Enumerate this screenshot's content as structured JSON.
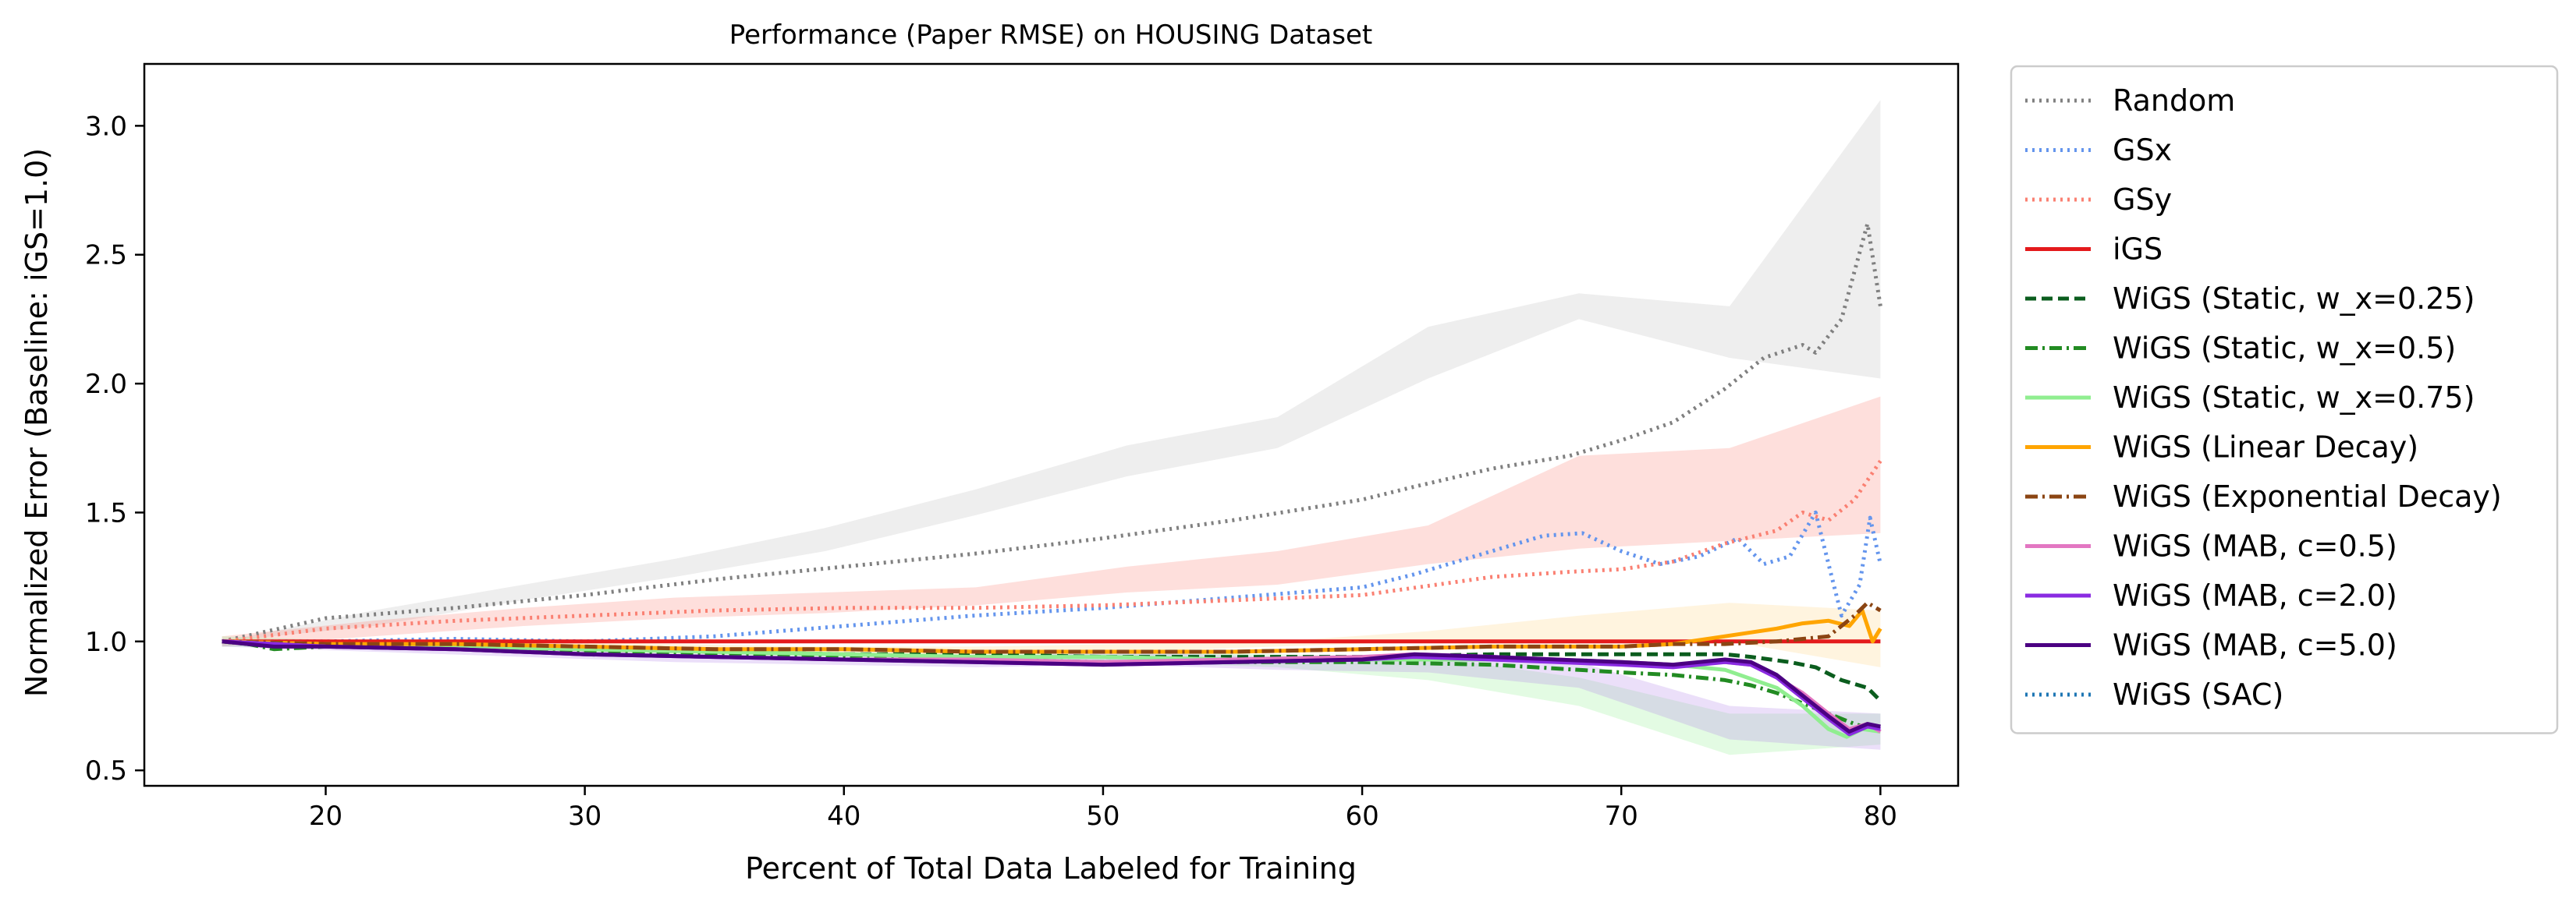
{
  "chart_data": {
    "type": "line",
    "title": "Performance (Paper RMSE) on HOUSING Dataset",
    "xlabel": "Percent of Total Data Labeled for Training",
    "ylabel": "Normalized Error (Baseline: iGS=1.0)",
    "xlim": [
      13,
      83
    ],
    "ylim": [
      0.44,
      3.24
    ],
    "xticks": [
      20,
      30,
      40,
      50,
      60,
      70,
      80
    ],
    "yticks": [
      0.5,
      1.0,
      1.5,
      2.0,
      2.5,
      3.0
    ],
    "xtick_labels": [
      "20",
      "30",
      "40",
      "50",
      "60",
      "70",
      "80"
    ],
    "ytick_labels": [
      "0.5",
      "1.0",
      "1.5",
      "2.0",
      "2.5",
      "3.0"
    ],
    "grid": false,
    "legend_position": "outside-right",
    "series": [
      {
        "name": "Random",
        "color": "#808080",
        "style": "dotted",
        "band": {
          "color": "#bdbdbd",
          "lower": [
            1.0,
            1.06,
            1.16,
            1.25,
            1.35,
            1.49,
            1.64,
            1.75,
            2.02,
            2.25,
            2.1,
            2.02
          ],
          "upper": [
            1.0,
            1.12,
            1.22,
            1.32,
            1.44,
            1.59,
            1.76,
            1.87,
            2.22,
            2.35,
            2.3,
            3.1
          ]
        },
        "points": [
          [
            16,
            1.0
          ],
          [
            20,
            1.09
          ],
          [
            25,
            1.13
          ],
          [
            30,
            1.18
          ],
          [
            35,
            1.24
          ],
          [
            40,
            1.29
          ],
          [
            45,
            1.34
          ],
          [
            50,
            1.4
          ],
          [
            55,
            1.47
          ],
          [
            60,
            1.55
          ],
          [
            62,
            1.6
          ],
          [
            65,
            1.67
          ],
          [
            68,
            1.72
          ],
          [
            70,
            1.78
          ],
          [
            72,
            1.85
          ],
          [
            74,
            1.98
          ],
          [
            75.5,
            2.1
          ],
          [
            77,
            2.15
          ],
          [
            77.5,
            2.12
          ],
          [
            78.5,
            2.25
          ],
          [
            79.5,
            2.62
          ],
          [
            80,
            2.3
          ]
        ]
      },
      {
        "name": "GSx",
        "color": "#6495ed",
        "style": "dotted",
        "points": [
          [
            16,
            1.0
          ],
          [
            20,
            1.0
          ],
          [
            25,
            1.01
          ],
          [
            30,
            1.0
          ],
          [
            35,
            1.02
          ],
          [
            40,
            1.06
          ],
          [
            45,
            1.1
          ],
          [
            50,
            1.13
          ],
          [
            55,
            1.17
          ],
          [
            60,
            1.21
          ],
          [
            62,
            1.26
          ],
          [
            65,
            1.35
          ],
          [
            67,
            1.41
          ],
          [
            68.5,
            1.42
          ],
          [
            70,
            1.35
          ],
          [
            71.5,
            1.3
          ],
          [
            73,
            1.33
          ],
          [
            74.5,
            1.4
          ],
          [
            75.5,
            1.3
          ],
          [
            76.5,
            1.33
          ],
          [
            77.5,
            1.5
          ],
          [
            78.5,
            1.1
          ],
          [
            79.2,
            1.22
          ],
          [
            79.6,
            1.48
          ],
          [
            80,
            1.3
          ]
        ]
      },
      {
        "name": "GSy",
        "color": "#fa8072",
        "style": "dotted",
        "band": {
          "color": "#fa8072",
          "lower": [
            0.98,
            1.02,
            1.06,
            1.09,
            1.11,
            1.14,
            1.19,
            1.22,
            1.3,
            1.36,
            1.39,
            1.42
          ],
          "upper": [
            1.02,
            1.08,
            1.13,
            1.17,
            1.19,
            1.21,
            1.29,
            1.35,
            1.45,
            1.72,
            1.75,
            1.95
          ]
        },
        "points": [
          [
            16,
            1.0
          ],
          [
            20,
            1.05
          ],
          [
            25,
            1.08
          ],
          [
            30,
            1.1
          ],
          [
            35,
            1.12
          ],
          [
            40,
            1.13
          ],
          [
            45,
            1.13
          ],
          [
            50,
            1.14
          ],
          [
            55,
            1.16
          ],
          [
            60,
            1.18
          ],
          [
            65,
            1.25
          ],
          [
            68,
            1.27
          ],
          [
            70,
            1.28
          ],
          [
            72,
            1.31
          ],
          [
            74,
            1.38
          ],
          [
            76,
            1.43
          ],
          [
            77,
            1.5
          ],
          [
            78,
            1.47
          ],
          [
            79,
            1.55
          ],
          [
            80,
            1.7
          ]
        ]
      },
      {
        "name": "iGS",
        "color": "#e41a1c",
        "style": "solid",
        "points": [
          [
            16,
            1.0
          ],
          [
            80,
            1.0
          ]
        ]
      },
      {
        "name": "WiGS (Static, w_x=0.25)",
        "color": "#0b5d1e",
        "style": "dashed",
        "points": [
          [
            16,
            1.0
          ],
          [
            17,
            0.99
          ],
          [
            18,
            0.98
          ],
          [
            20,
            0.99
          ],
          [
            25,
            0.98
          ],
          [
            30,
            0.97
          ],
          [
            35,
            0.96
          ],
          [
            40,
            0.95
          ],
          [
            45,
            0.95
          ],
          [
            50,
            0.94
          ],
          [
            55,
            0.94
          ],
          [
            60,
            0.94
          ],
          [
            65,
            0.95
          ],
          [
            70,
            0.95
          ],
          [
            72,
            0.95
          ],
          [
            74,
            0.95
          ],
          [
            75,
            0.94
          ],
          [
            76.5,
            0.92
          ],
          [
            77.5,
            0.9
          ],
          [
            78.5,
            0.85
          ],
          [
            79.5,
            0.82
          ],
          [
            80,
            0.77
          ]
        ]
      },
      {
        "name": "WiGS (Static, w_x=0.5)",
        "color": "#228b22",
        "style": "dashdot",
        "points": [
          [
            16,
            1.0
          ],
          [
            17,
            0.99
          ],
          [
            18,
            0.97
          ],
          [
            20,
            0.98
          ],
          [
            25,
            0.97
          ],
          [
            30,
            0.96
          ],
          [
            35,
            0.95
          ],
          [
            40,
            0.94
          ],
          [
            45,
            0.93
          ],
          [
            50,
            0.92
          ],
          [
            55,
            0.92
          ],
          [
            60,
            0.92
          ],
          [
            65,
            0.91
          ],
          [
            70,
            0.88
          ],
          [
            72,
            0.87
          ],
          [
            74,
            0.85
          ],
          [
            75,
            0.83
          ],
          [
            76,
            0.8
          ],
          [
            77,
            0.76
          ],
          [
            78,
            0.72
          ],
          [
            79,
            0.68
          ],
          [
            80,
            0.65
          ]
        ]
      },
      {
        "name": "WiGS (Static, w_x=0.75)",
        "color": "#90ee90",
        "style": "solid",
        "band": {
          "color": "#90ee90",
          "lower": [
            0.98,
            0.97,
            0.96,
            0.95,
            0.94,
            0.93,
            0.92,
            0.9,
            0.85,
            0.75,
            0.56,
            0.6
          ],
          "upper": [
            1.02,
            1.0,
            0.99,
            0.97,
            0.96,
            0.95,
            0.96,
            0.95,
            0.94,
            0.86,
            0.72,
            0.72
          ]
        },
        "points": [
          [
            16,
            1.0
          ],
          [
            20,
            0.99
          ],
          [
            25,
            0.98
          ],
          [
            30,
            0.97
          ],
          [
            35,
            0.96
          ],
          [
            40,
            0.95
          ],
          [
            45,
            0.94
          ],
          [
            50,
            0.94
          ],
          [
            55,
            0.93
          ],
          [
            60,
            0.93
          ],
          [
            65,
            0.93
          ],
          [
            70,
            0.92
          ],
          [
            72,
            0.91
          ],
          [
            74,
            0.89
          ],
          [
            76,
            0.82
          ],
          [
            77,
            0.75
          ],
          [
            78,
            0.66
          ],
          [
            78.7,
            0.63
          ],
          [
            79.3,
            0.66
          ],
          [
            80,
            0.65
          ]
        ]
      },
      {
        "name": "WiGS (Linear Decay)",
        "color": "#ffa500",
        "style": "solid",
        "band": {
          "color": "#ffd27f",
          "lower": [
            0.99,
            0.98,
            0.97,
            0.96,
            0.95,
            0.95,
            0.96,
            0.98,
            1.0,
            1.0,
            1.0,
            0.9
          ],
          "upper": [
            1.01,
            1.0,
            1.0,
            0.99,
            0.98,
            0.98,
            0.99,
            1.0,
            1.04,
            1.1,
            1.15,
            1.12
          ]
        },
        "points": [
          [
            16,
            1.0
          ],
          [
            20,
            0.99
          ],
          [
            25,
            0.99
          ],
          [
            30,
            0.98
          ],
          [
            35,
            0.97
          ],
          [
            40,
            0.97
          ],
          [
            45,
            0.96
          ],
          [
            50,
            0.96
          ],
          [
            55,
            0.96
          ],
          [
            60,
            0.97
          ],
          [
            65,
            0.98
          ],
          [
            70,
            0.98
          ],
          [
            72,
            0.99
          ],
          [
            74,
            1.02
          ],
          [
            76,
            1.05
          ],
          [
            77,
            1.07
          ],
          [
            78,
            1.08
          ],
          [
            78.8,
            1.06
          ],
          [
            79.3,
            1.12
          ],
          [
            79.7,
            1.0
          ],
          [
            80,
            1.05
          ]
        ]
      },
      {
        "name": "WiGS (Exponential Decay)",
        "color": "#8b4513",
        "style": "dashdot",
        "points": [
          [
            16,
            1.0
          ],
          [
            20,
            0.99
          ],
          [
            25,
            0.99
          ],
          [
            30,
            0.98
          ],
          [
            35,
            0.97
          ],
          [
            40,
            0.97
          ],
          [
            45,
            0.96
          ],
          [
            50,
            0.96
          ],
          [
            55,
            0.96
          ],
          [
            60,
            0.97
          ],
          [
            65,
            0.98
          ],
          [
            70,
            0.98
          ],
          [
            72,
            0.99
          ],
          [
            74,
            0.99
          ],
          [
            76,
            1.0
          ],
          [
            77,
            1.01
          ],
          [
            78,
            1.02
          ],
          [
            79,
            1.1
          ],
          [
            79.5,
            1.15
          ],
          [
            80,
            1.12
          ]
        ]
      },
      {
        "name": "WiGS (MAB, c=0.5)",
        "color": "#e377c2",
        "style": "solid",
        "points": [
          [
            16,
            1.0
          ],
          [
            20,
            0.98
          ],
          [
            25,
            0.97
          ],
          [
            30,
            0.95
          ],
          [
            35,
            0.94
          ],
          [
            40,
            0.93
          ],
          [
            45,
            0.93
          ],
          [
            50,
            0.92
          ],
          [
            55,
            0.93
          ],
          [
            60,
            0.94
          ],
          [
            62,
            0.95
          ],
          [
            65,
            0.94
          ],
          [
            70,
            0.92
          ],
          [
            72,
            0.91
          ],
          [
            74,
            0.92
          ],
          [
            75,
            0.91
          ],
          [
            76,
            0.86
          ],
          [
            77,
            0.8
          ],
          [
            78,
            0.72
          ],
          [
            78.8,
            0.66
          ],
          [
            79.5,
            0.68
          ],
          [
            80,
            0.65
          ]
        ]
      },
      {
        "name": "WiGS (MAB, c=2.0)",
        "color": "#8a2be2",
        "style": "solid",
        "band": {
          "color": "#b07fe8",
          "lower": [
            0.98,
            0.96,
            0.94,
            0.92,
            0.91,
            0.9,
            0.91,
            0.89,
            0.88,
            0.82,
            0.62,
            0.58
          ],
          "upper": [
            1.01,
            0.99,
            0.97,
            0.95,
            0.94,
            0.94,
            0.96,
            0.94,
            0.95,
            0.92,
            0.75,
            0.72
          ]
        },
        "points": [
          [
            16,
            1.0
          ],
          [
            20,
            0.98
          ],
          [
            25,
            0.97
          ],
          [
            30,
            0.95
          ],
          [
            35,
            0.94
          ],
          [
            40,
            0.93
          ],
          [
            45,
            0.92
          ],
          [
            50,
            0.91
          ],
          [
            55,
            0.92
          ],
          [
            60,
            0.93
          ],
          [
            62,
            0.94
          ],
          [
            65,
            0.93
          ],
          [
            70,
            0.91
          ],
          [
            72,
            0.9
          ],
          [
            74,
            0.92
          ],
          [
            75,
            0.91
          ],
          [
            76,
            0.86
          ],
          [
            77,
            0.78
          ],
          [
            78,
            0.7
          ],
          [
            78.8,
            0.64
          ],
          [
            79.5,
            0.67
          ],
          [
            80,
            0.66
          ]
        ]
      },
      {
        "name": "WiGS (MAB, c=5.0)",
        "color": "#4b0082",
        "style": "solid",
        "points": [
          [
            16,
            1.0
          ],
          [
            17,
            0.99
          ],
          [
            18,
            0.98
          ],
          [
            20,
            0.98
          ],
          [
            25,
            0.97
          ],
          [
            30,
            0.95
          ],
          [
            35,
            0.94
          ],
          [
            40,
            0.93
          ],
          [
            45,
            0.92
          ],
          [
            50,
            0.91
          ],
          [
            55,
            0.92
          ],
          [
            60,
            0.93
          ],
          [
            62,
            0.95
          ],
          [
            65,
            0.94
          ],
          [
            70,
            0.92
          ],
          [
            72,
            0.91
          ],
          [
            74,
            0.93
          ],
          [
            75,
            0.92
          ],
          [
            76,
            0.87
          ],
          [
            77,
            0.79
          ],
          [
            78,
            0.71
          ],
          [
            78.8,
            0.65
          ],
          [
            79.5,
            0.68
          ],
          [
            80,
            0.67
          ]
        ]
      },
      {
        "name": "WiGS (SAC)",
        "color": "#1f77b4",
        "style": "dotted",
        "points": []
      }
    ]
  }
}
